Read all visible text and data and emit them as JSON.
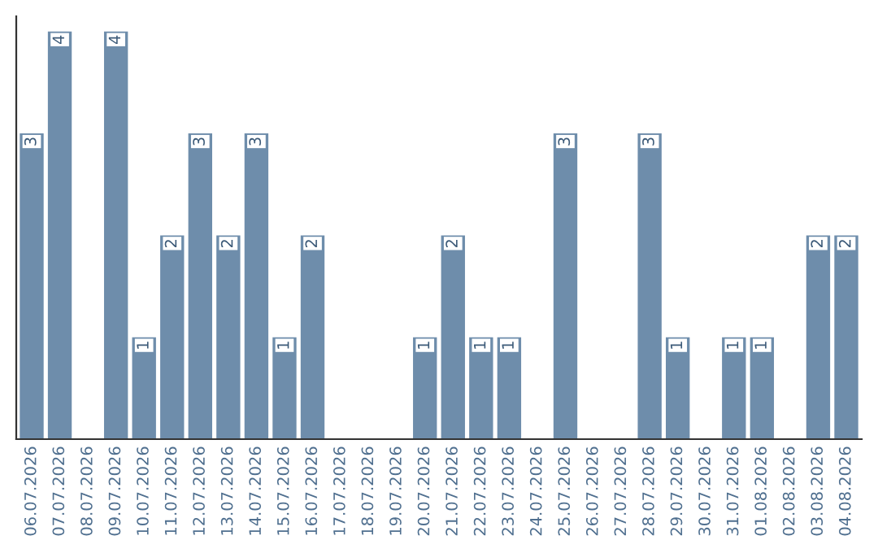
{
  "chart_data": {
    "type": "bar",
    "categories": [
      "06.07.2026",
      "07.07.2026",
      "08.07.2026",
      "09.07.2026",
      "10.07.2026",
      "11.07.2026",
      "12.07.2026",
      "13.07.2026",
      "14.07.2026",
      "15.07.2026",
      "16.07.2026",
      "17.07.2026",
      "18.07.2026",
      "19.07.2026",
      "20.07.2026",
      "21.07.2026",
      "22.07.2026",
      "23.07.2026",
      "24.07.2026",
      "25.07.2026",
      "26.07.2026",
      "27.07.2026",
      "28.07.2026",
      "29.07.2026",
      "30.07.2026",
      "31.07.2026",
      "01.08.2026",
      "02.08.2026",
      "03.08.2026",
      "04.08.2026"
    ],
    "values": [
      3,
      4,
      null,
      4,
      1,
      2,
      3,
      2,
      3,
      1,
      2,
      null,
      null,
      null,
      1,
      2,
      1,
      1,
      null,
      3,
      null,
      null,
      3,
      1,
      null,
      1,
      1,
      null,
      2,
      2
    ],
    "color": "#6e8dab",
    "ylim": [
      0,
      4.15
    ],
    "tick_labels": "x",
    "data_labels": true,
    "grid": false,
    "legend": false
  }
}
